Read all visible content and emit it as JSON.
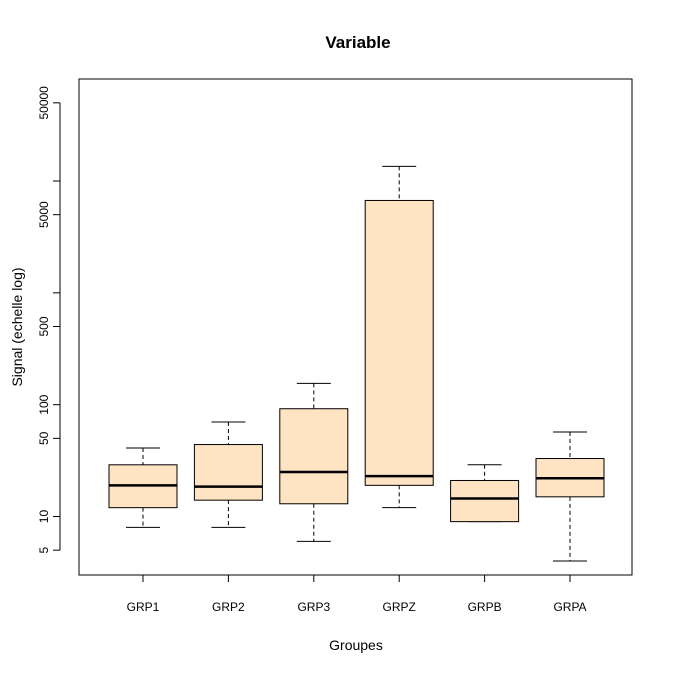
{
  "chart_data": {
    "type": "boxplot",
    "title": "Variable",
    "xlabel": "Groupes",
    "ylabel": "Signal (echelle log)",
    "y_scale": "log",
    "ylim": [
      3,
      80000
    ],
    "y_ticks": [
      5,
      10,
      50,
      100,
      500,
      1000,
      5000,
      10000,
      50000
    ],
    "y_tick_labels": [
      "5",
      "10",
      "50",
      "100",
      "500",
      "",
      "5000",
      "",
      "50000"
    ],
    "box_fill": "#FFE4C4",
    "categories": [
      "GRP1",
      "GRP2",
      "GRP3",
      "GRPZ",
      "GRPB",
      "GRPA"
    ],
    "boxes": [
      {
        "category": "GRP1",
        "whisker_low": 8,
        "q1": 12,
        "median": 19,
        "q3": 29,
        "whisker_high": 41
      },
      {
        "category": "GRP2",
        "whisker_low": 8,
        "q1": 14,
        "median": 18.5,
        "q3": 44,
        "whisker_high": 70
      },
      {
        "category": "GRP3",
        "whisker_low": 6,
        "q1": 13,
        "median": 25,
        "q3": 92,
        "whisker_high": 155
      },
      {
        "category": "GRPZ",
        "whisker_low": 12,
        "q1": 19,
        "median": 23,
        "q3": 6700,
        "whisker_high": 13500
      },
      {
        "category": "GRPB",
        "whisker_low": 9,
        "q1": 9,
        "median": 14.5,
        "q3": 21,
        "whisker_high": 29
      },
      {
        "category": "GRPA",
        "whisker_low": 4,
        "q1": 15,
        "median": 22,
        "q3": 33,
        "whisker_high": 57
      }
    ]
  }
}
